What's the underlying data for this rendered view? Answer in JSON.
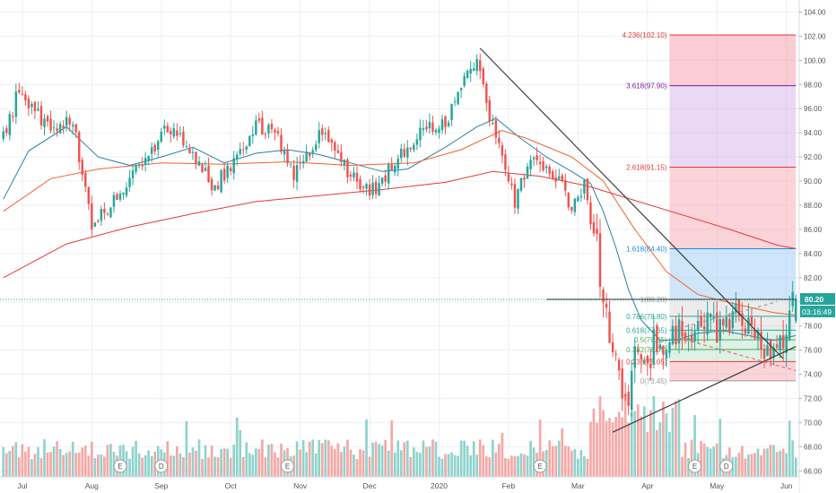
{
  "chart_data": {
    "type": "candlestick",
    "price_axis": {
      "range": [
        65.5,
        105.0
      ],
      "ticks": [
        "104.00",
        "102.00",
        "100.00",
        "98.00",
        "96.00",
        "94.00",
        "92.00",
        "90.00",
        "88.00",
        "86.00",
        "84.00",
        "82.00",
        "80.00",
        "78.00",
        "76.00",
        "74.00",
        "72.00",
        "70.00",
        "68.00",
        "66.00"
      ],
      "tick_values": [
        104,
        102,
        100,
        98,
        96,
        94,
        92,
        90,
        88,
        86,
        84,
        82,
        80,
        78,
        76,
        74,
        72,
        70,
        68,
        66
      ],
      "last_price_label": "80.20",
      "last_price_value": 80.2,
      "countdown_label": "03:16:49"
    },
    "time_axis": {
      "labels": [
        "Jul",
        "Aug",
        "Sep",
        "Oct",
        "Nov",
        "Dec",
        "2020",
        "Feb",
        "Mar",
        "Apr",
        "May",
        "Jun"
      ],
      "bar_index": [
        6,
        28,
        50,
        72,
        94,
        116,
        138,
        160,
        182,
        204,
        226,
        248
      ]
    },
    "bar_count": 252,
    "key_prices": [
      {
        "bar": 0,
        "price": 93.5
      },
      {
        "bar": 5,
        "price": 97.6
      },
      {
        "bar": 14,
        "price": 94.5
      },
      {
        "bar": 22,
        "price": 95.0
      },
      {
        "bar": 28,
        "price": 86.0
      },
      {
        "bar": 34,
        "price": 88.0
      },
      {
        "bar": 42,
        "price": 91.0
      },
      {
        "bar": 52,
        "price": 94.5
      },
      {
        "bar": 60,
        "price": 92.5
      },
      {
        "bar": 66,
        "price": 89.5
      },
      {
        "bar": 72,
        "price": 91.0
      },
      {
        "bar": 80,
        "price": 94.5
      },
      {
        "bar": 86,
        "price": 94.0
      },
      {
        "bar": 92,
        "price": 90.5
      },
      {
        "bar": 100,
        "price": 94.0
      },
      {
        "bar": 110,
        "price": 90.5
      },
      {
        "bar": 118,
        "price": 89.0
      },
      {
        "bar": 124,
        "price": 91.5
      },
      {
        "bar": 130,
        "price": 93.5
      },
      {
        "bar": 140,
        "price": 95.0
      },
      {
        "bar": 146,
        "price": 98.0
      },
      {
        "bar": 150,
        "price": 100.6
      },
      {
        "bar": 154,
        "price": 95.5
      },
      {
        "bar": 158,
        "price": 92.5
      },
      {
        "bar": 162,
        "price": 88.0
      },
      {
        "bar": 166,
        "price": 91.5
      },
      {
        "bar": 172,
        "price": 91.0
      },
      {
        "bar": 176,
        "price": 90.5
      },
      {
        "bar": 180,
        "price": 87.5
      },
      {
        "bar": 184,
        "price": 89.5
      },
      {
        "bar": 188,
        "price": 84.5
      },
      {
        "bar": 190,
        "price": 80.5
      },
      {
        "bar": 191,
        "price": 79.5
      },
      {
        "bar": 192,
        "price": 77.0
      },
      {
        "bar": 194,
        "price": 74.5
      },
      {
        "bar": 196,
        "price": 72.0
      },
      {
        "bar": 198,
        "price": 71.5
      },
      {
        "bar": 200,
        "price": 76.0
      },
      {
        "bar": 202,
        "price": 76.5
      },
      {
        "bar": 204,
        "price": 74.5
      },
      {
        "bar": 206,
        "price": 76.5
      },
      {
        "bar": 210,
        "price": 76.0
      },
      {
        "bar": 214,
        "price": 78.0
      },
      {
        "bar": 218,
        "price": 77.0
      },
      {
        "bar": 222,
        "price": 78.5
      },
      {
        "bar": 226,
        "price": 77.5
      },
      {
        "bar": 230,
        "price": 78.5
      },
      {
        "bar": 234,
        "price": 79.0
      },
      {
        "bar": 238,
        "price": 77.5
      },
      {
        "bar": 242,
        "price": 75.8
      },
      {
        "bar": 246,
        "price": 76.5
      },
      {
        "bar": 249,
        "price": 79.0
      },
      {
        "bar": 251,
        "price": 80.2
      }
    ],
    "moving_averages": [
      {
        "color": "#2a7fa8",
        "points": [
          [
            0,
            88.5
          ],
          [
            8,
            92.5
          ],
          [
            20,
            94.5
          ],
          [
            30,
            92.0
          ],
          [
            40,
            91.3
          ],
          [
            50,
            92.0
          ],
          [
            60,
            92.8
          ],
          [
            70,
            91.5
          ],
          [
            80,
            92.3
          ],
          [
            90,
            92.6
          ],
          [
            100,
            92.2
          ],
          [
            110,
            91.5
          ],
          [
            120,
            90.8
          ],
          [
            128,
            91.0
          ],
          [
            140,
            92.8
          ],
          [
            150,
            94.5
          ],
          [
            156,
            95.2
          ],
          [
            164,
            93.5
          ],
          [
            172,
            92.0
          ],
          [
            180,
            90.8
          ],
          [
            186,
            89.8
          ],
          [
            190,
            87.5
          ],
          [
            194,
            84.5
          ],
          [
            198,
            81.0
          ],
          [
            202,
            78.5
          ],
          [
            208,
            76.8
          ],
          [
            214,
            76.9
          ],
          [
            220,
            77.4
          ],
          [
            228,
            77.6
          ],
          [
            236,
            77.2
          ],
          [
            244,
            76.8
          ],
          [
            251,
            77.2
          ]
        ]
      },
      {
        "color": "#f2622e",
        "points": [
          [
            0,
            87.5
          ],
          [
            15,
            90.2
          ],
          [
            30,
            91.0
          ],
          [
            50,
            91.5
          ],
          [
            70,
            91.4
          ],
          [
            90,
            91.6
          ],
          [
            110,
            91.3
          ],
          [
            130,
            91.5
          ],
          [
            145,
            92.6
          ],
          [
            158,
            94.2
          ],
          [
            166,
            93.5
          ],
          [
            180,
            92.0
          ],
          [
            190,
            90.0
          ],
          [
            200,
            86.0
          ],
          [
            210,
            82.5
          ],
          [
            220,
            80.6
          ],
          [
            232,
            79.8
          ],
          [
            244,
            79.1
          ],
          [
            251,
            78.9
          ]
        ]
      },
      {
        "color": "#e53935",
        "points": [
          [
            0,
            82.0
          ],
          [
            20,
            84.8
          ],
          [
            40,
            86.2
          ],
          [
            60,
            87.3
          ],
          [
            80,
            88.3
          ],
          [
            100,
            88.8
          ],
          [
            120,
            89.3
          ],
          [
            140,
            89.9
          ],
          [
            155,
            90.8
          ],
          [
            170,
            90.4
          ],
          [
            185,
            89.6
          ],
          [
            200,
            88.4
          ],
          [
            215,
            87.2
          ],
          [
            230,
            86.0
          ],
          [
            245,
            84.7
          ],
          [
            251,
            84.4
          ]
        ]
      }
    ],
    "trendlines": [
      {
        "points": [
          [
            151,
            101.0
          ],
          [
            247,
            75.3
          ]
        ],
        "color": "#3b3b3b"
      },
      {
        "points": [
          [
            193,
            69.2
          ],
          [
            251,
            76.3
          ]
        ],
        "color": "#3b3b3b"
      },
      {
        "points": [
          [
            214,
            77.0
          ],
          [
            251,
            74.3
          ]
        ],
        "color": "#e57373",
        "dashed": true
      },
      {
        "points": [
          [
            214,
            77.8
          ],
          [
            245,
            80.0
          ]
        ],
        "color": "#9e9e9e",
        "dashed": true
      },
      {
        "points": [
          [
            172,
            80.2
          ],
          [
            251,
            80.2
          ]
        ],
        "color": "#3b3b3b"
      }
    ],
    "fibonacci": {
      "start_bar": 211,
      "end_bar": 251,
      "levels": [
        {
          "label": "4.236(102.10)",
          "ratio": 4.236,
          "price": 102.1,
          "line": "#e53935",
          "fill": "rgba(244,143,160,0.45)"
        },
        {
          "label": "3.618(97.90)",
          "ratio": 3.618,
          "price": 97.9,
          "line": "#7b1fa2",
          "fill": "rgba(206,170,230,0.45)"
        },
        {
          "label": "2.618(91.15)",
          "ratio": 2.618,
          "price": 91.15,
          "line": "#e53935",
          "fill": "rgba(245,160,170,0.45)"
        },
        {
          "label": "1.618(84.40)",
          "ratio": 1.618,
          "price": 84.4,
          "line": "#1e88e5",
          "fill": "rgba(160,205,245,0.5)"
        },
        {
          "label": "1(80.20)",
          "ratio": 1,
          "price": 80.2,
          "line": "#9e9e9e",
          "fill": "rgba(200,200,200,0.35)"
        },
        {
          "label": "0.786(78.80)",
          "ratio": 0.786,
          "price": 78.8,
          "line": "#26a69a",
          "fill": "rgba(200,200,200,0.35)"
        },
        {
          "label": "0.618(77.65)",
          "ratio": 0.618,
          "price": 77.65,
          "line": "#26a69a",
          "fill": "rgba(180,225,200,0.45)"
        },
        {
          "label": "0.5(76.85)",
          "ratio": 0.5,
          "price": 76.85,
          "line": "#4caf50",
          "fill": "rgba(180,225,200,0.45)"
        },
        {
          "label": "0.382(76.05)",
          "ratio": 0.382,
          "price": 76.05,
          "line": "#4caf50",
          "fill": "rgba(180,225,200,0.45)"
        },
        {
          "label": "0.236(75.05)",
          "ratio": 0.236,
          "price": 75.05,
          "line": "#e53935",
          "fill": "rgba(245,160,170,0.45)"
        },
        {
          "label": "0(73.45)",
          "ratio": 0,
          "price": 73.45,
          "line": "#9e9e9e",
          "fill": "none"
        }
      ]
    },
    "events": [
      {
        "label": "E",
        "bar": 37
      },
      {
        "label": "D",
        "bar": 50
      },
      {
        "label": "E",
        "bar": 90
      },
      {
        "label": "E",
        "bar": 170
      },
      {
        "label": "E",
        "bar": 219
      },
      {
        "label": "D",
        "bar": 229
      }
    ],
    "colors": {
      "up": "#26a69a",
      "down": "#ef5350",
      "up_volume": "#8fd3cd",
      "down_volume": "#f5a8a6",
      "grid": "#eef0f3",
      "axis_text": "#555555",
      "last_price": "#26a69a"
    },
    "grid": true
  }
}
